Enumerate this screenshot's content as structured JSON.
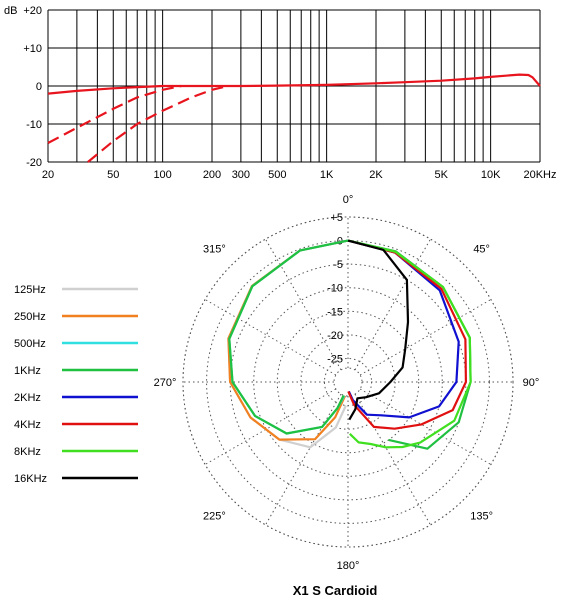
{
  "chart_data": [
    {
      "type": "line",
      "title": "",
      "ylabel": "dB",
      "xlabel": "",
      "x_scale": "log",
      "xlim": [
        20,
        20000
      ],
      "ylim": [
        -20,
        20
      ],
      "x_ticks": [
        20,
        50,
        100,
        200,
        300,
        500,
        1000,
        2000,
        5000,
        10000,
        20000
      ],
      "x_tick_labels": [
        "20",
        "50",
        "100",
        "200",
        "300",
        "500",
        "1K",
        "2K",
        "5K",
        "10K",
        "20KHz"
      ],
      "y_ticks": [
        20,
        10,
        0,
        -10,
        -20
      ],
      "y_tick_labels": [
        "+20",
        "+10",
        "0",
        "-10",
        "-20"
      ],
      "grid": true,
      "color": "#e8141e",
      "series": [
        {
          "style": "solid",
          "x": [
            20,
            30,
            50,
            70,
            100,
            150,
            200,
            300,
            500,
            1000,
            2000,
            3000,
            5000,
            8000,
            10000,
            13000,
            15000,
            17000,
            18000,
            20000
          ],
          "y": [
            -2,
            -1.3,
            -0.6,
            -0.3,
            0,
            0,
            0,
            0,
            0.1,
            0.3,
            0.7,
            1,
            1.4,
            2,
            2.4,
            2.8,
            3,
            2.9,
            2.3,
            0
          ]
        },
        {
          "style": "dashed",
          "x": [
            20,
            30,
            50,
            70,
            100,
            130
          ],
          "y": [
            -15,
            -11,
            -6,
            -3,
            -1,
            0
          ]
        },
        {
          "style": "dashed",
          "x": [
            35,
            50,
            70,
            100,
            150,
            200,
            250
          ],
          "y": [
            -20,
            -14.5,
            -10,
            -6.5,
            -3,
            -1,
            0
          ]
        }
      ]
    },
    {
      "type": "polar",
      "title": "X1 S  Cardioid",
      "r_ticks": [
        5,
        0,
        -5,
        -10,
        -15,
        -20,
        -25
      ],
      "r_tick_labels": [
        "+5",
        "0",
        "-5",
        "-10",
        "-15",
        "-20",
        "-25"
      ],
      "r_range": [
        -30,
        5
      ],
      "angle_labels": [
        "0°",
        "45°",
        "90°",
        "135°",
        "180°",
        "225°",
        "270°",
        "315°"
      ],
      "legend": [
        {
          "name": "125Hz",
          "color": "#d0d0d0"
        },
        {
          "name": "250Hz",
          "color": "#f08020"
        },
        {
          "name": "500Hz",
          "color": "#30e0e0"
        },
        {
          "name": "1KHz",
          "color": "#20c040"
        },
        {
          "name": "2KHz",
          "color": "#1010d0"
        },
        {
          "name": "4KHz",
          "color": "#e01010"
        },
        {
          "name": "8KHz",
          "color": "#40e020"
        },
        {
          "name": "16KHz",
          "color": "#000000"
        }
      ],
      "series": [
        {
          "name": "125Hz",
          "side": "left",
          "angles": [
            0,
            20,
            45,
            70,
            90,
            110,
            130,
            150,
            165,
            175
          ],
          "db": [
            0,
            -0.3,
            -1.2,
            -3,
            -5,
            -8,
            -11,
            -14,
            -20,
            -25
          ]
        },
        {
          "name": "250Hz",
          "side": "left",
          "angles": [
            0,
            20,
            45,
            70,
            90,
            110,
            130,
            150,
            160,
            168
          ],
          "db": [
            0,
            -0.3,
            -1.2,
            -3,
            -5,
            -8,
            -11,
            -16,
            -22,
            -27
          ]
        },
        {
          "name": "500Hz",
          "side": "left",
          "angles": [
            0,
            20,
            45,
            70,
            90,
            110,
            130,
            150,
            158,
            165
          ],
          "db": [
            0,
            -0.3,
            -1.3,
            -3.2,
            -5.5,
            -9,
            -13,
            -19,
            -24,
            -27
          ]
        },
        {
          "name": "1KHz",
          "side": "left",
          "angles": [
            0,
            20,
            45,
            70,
            90,
            110,
            130,
            150,
            158,
            162
          ],
          "db": [
            0,
            -0.3,
            -1.3,
            -3.2,
            -5.5,
            -9,
            -13,
            -19,
            -24,
            -27
          ]
        },
        {
          "name": "1KHz",
          "side": "right",
          "angles": [
            0,
            20,
            45,
            70,
            90,
            110,
            130,
            145
          ],
          "db": [
            0,
            -0.5,
            -1.5,
            -2.5,
            -4,
            -5,
            -8,
            -15
          ]
        },
        {
          "name": "2KHz",
          "side": "right",
          "angles": [
            0,
            20,
            45,
            70,
            90,
            105,
            120,
            135,
            150,
            165,
            175
          ],
          "db": [
            0,
            -0.8,
            -2.5,
            -5,
            -7,
            -10,
            -15,
            -20,
            -22,
            -26,
            -28
          ]
        },
        {
          "name": "4KHz",
          "side": "right",
          "angles": [
            0,
            20,
            45,
            70,
            90,
            105,
            120,
            135,
            150,
            165,
            178
          ],
          "db": [
            0,
            -0.8,
            -2,
            -3.5,
            -5,
            -7,
            -12,
            -16,
            -19,
            -25,
            -28
          ]
        },
        {
          "name": "8KHz",
          "side": "right",
          "angles": [
            0,
            20,
            45,
            70,
            90,
            110,
            130,
            140,
            150,
            160,
            170,
            178
          ],
          "db": [
            0,
            -0.6,
            -1.5,
            -2.5,
            -4,
            -6,
            -10,
            -12,
            -14,
            -16,
            -17,
            -19
          ]
        },
        {
          "name": "16KHz",
          "side": "right",
          "angles": [
            0,
            15,
            30,
            45,
            60,
            75,
            90,
            110,
            130,
            150,
            165,
            178
          ],
          "db": [
            0,
            -1,
            -5,
            -12,
            -16,
            -18,
            -21,
            -23,
            -25,
            -26,
            -24,
            -22
          ]
        }
      ]
    }
  ]
}
